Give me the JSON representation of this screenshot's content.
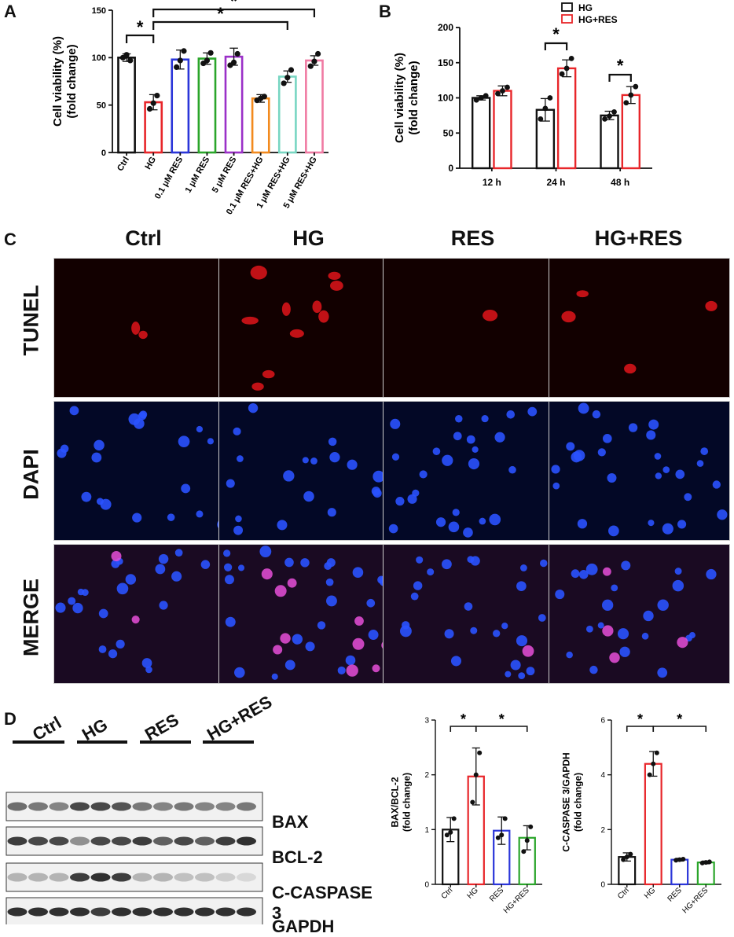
{
  "panels": {
    "a": "A",
    "b": "B",
    "c": "C",
    "d": "D"
  },
  "chart_data": [
    {
      "id": "A",
      "type": "bar",
      "ylabel": "Cell viability (%)\n(fold change)",
      "ylim": [
        0,
        150
      ],
      "yticks": [
        0,
        50,
        100,
        150
      ],
      "categories": [
        "Ctrl",
        "HG",
        "0.1 μM RES",
        "1 μM RES",
        "5 μM RES",
        "0.1 μM RES+HG",
        "1 μM RES+HG",
        "5 μM RES+HG"
      ],
      "values": [
        100,
        53,
        98,
        99,
        101,
        57,
        80,
        97
      ],
      "errors": [
        4,
        8,
        10,
        6,
        9,
        4,
        6,
        5
      ],
      "points": [
        [
          100,
          103,
          97
        ],
        [
          46,
          52,
          60
        ],
        [
          90,
          97,
          107
        ],
        [
          94,
          97,
          105
        ],
        [
          92,
          95,
          104
        ],
        [
          55,
          57,
          59
        ],
        [
          73,
          79,
          87
        ],
        [
          91,
          96,
          104
        ]
      ],
      "colors": [
        "#111111",
        "#e8262a",
        "#2b36d9",
        "#2aa52a",
        "#9b30c8",
        "#f28a1e",
        "#78d6c2",
        "#f07aa3"
      ],
      "significance": [
        {
          "from": 0,
          "to": 1,
          "label": "*"
        },
        {
          "from": 1,
          "to": 6,
          "label": "*"
        },
        {
          "from": 1,
          "to": 7,
          "label": "*"
        }
      ]
    },
    {
      "id": "B",
      "type": "bar",
      "ylabel": "Cell viability (%)\n(fold change)",
      "ylim": [
        0,
        200
      ],
      "yticks": [
        0,
        50,
        100,
        150,
        200
      ],
      "categories": [
        "12 h",
        "24 h",
        "48 h"
      ],
      "series": [
        {
          "name": "HG",
          "color": "#111111",
          "values": [
            100,
            83,
            75
          ],
          "errors": [
            3,
            16,
            6
          ],
          "points": [
            [
              97,
              100,
              103
            ],
            [
              70,
              85,
              100
            ],
            [
              70,
              74,
              80
            ]
          ]
        },
        {
          "name": "HG+RES",
          "color": "#e8262a",
          "values": [
            110,
            142,
            104
          ],
          "errors": [
            7,
            12,
            12
          ],
          "points": [
            [
              106,
              110,
              115
            ],
            [
              134,
              142,
              156
            ],
            [
              93,
              104,
              116
            ]
          ]
        }
      ],
      "significance": [
        {
          "group": 1,
          "label": "*"
        },
        {
          "group": 2,
          "label": "*"
        }
      ],
      "legend_position": "top"
    },
    {
      "id": "D1",
      "type": "bar",
      "ylabel": "BAX/BCL-2\n(fold change)",
      "ylim": [
        0,
        3
      ],
      "yticks": [
        0,
        1,
        2,
        3
      ],
      "categories": [
        "Ctrl",
        "HG",
        "RES",
        "HG+RES"
      ],
      "values": [
        1.0,
        1.97,
        0.98,
        0.85
      ],
      "errors": [
        0.22,
        0.52,
        0.25,
        0.22
      ],
      "points": [
        [
          0.9,
          0.95,
          1.2
        ],
        [
          1.5,
          2.0,
          2.4
        ],
        [
          0.85,
          0.9,
          1.2
        ],
        [
          0.6,
          0.8,
          1.05
        ]
      ],
      "colors": [
        "#111111",
        "#e8262a",
        "#2b36d9",
        "#2aa52a"
      ],
      "significance": [
        {
          "from": 0,
          "to": 1,
          "label": "*"
        },
        {
          "from": 1,
          "to": 3,
          "label": "*"
        }
      ]
    },
    {
      "id": "D2",
      "type": "bar",
      "ylabel": "C-CASPASE 3/GAPDH\n(fold change)",
      "ylim": [
        0,
        6
      ],
      "yticks": [
        0,
        2,
        4,
        6
      ],
      "categories": [
        "Ctrl",
        "HG",
        "RES",
        "HG+RES"
      ],
      "values": [
        1.0,
        4.4,
        0.9,
        0.8
      ],
      "errors": [
        0.15,
        0.45,
        0.05,
        0.05
      ],
      "points": [
        [
          0.9,
          1.0,
          1.1
        ],
        [
          4.0,
          4.4,
          4.8
        ],
        [
          0.88,
          0.9,
          0.92
        ],
        [
          0.78,
          0.8,
          0.82
        ]
      ],
      "colors": [
        "#111111",
        "#e8262a",
        "#2b36d9",
        "#2aa52a"
      ],
      "significance": [
        {
          "from": 0,
          "to": 1,
          "label": "*"
        },
        {
          "from": 1,
          "to": 3,
          "label": "*"
        }
      ]
    }
  ],
  "microscopy": {
    "columns": [
      "Ctrl",
      "HG",
      "RES",
      "HG+RES"
    ],
    "rows": [
      "TUNEL",
      "DAPI",
      "MERGE"
    ]
  },
  "western_blot": {
    "groups": [
      "Ctrl",
      "HG",
      "RES",
      "HG+RES"
    ],
    "bands": [
      "BAX",
      "BCL-2",
      "C-CASPASE 3",
      "GAPDH"
    ]
  }
}
